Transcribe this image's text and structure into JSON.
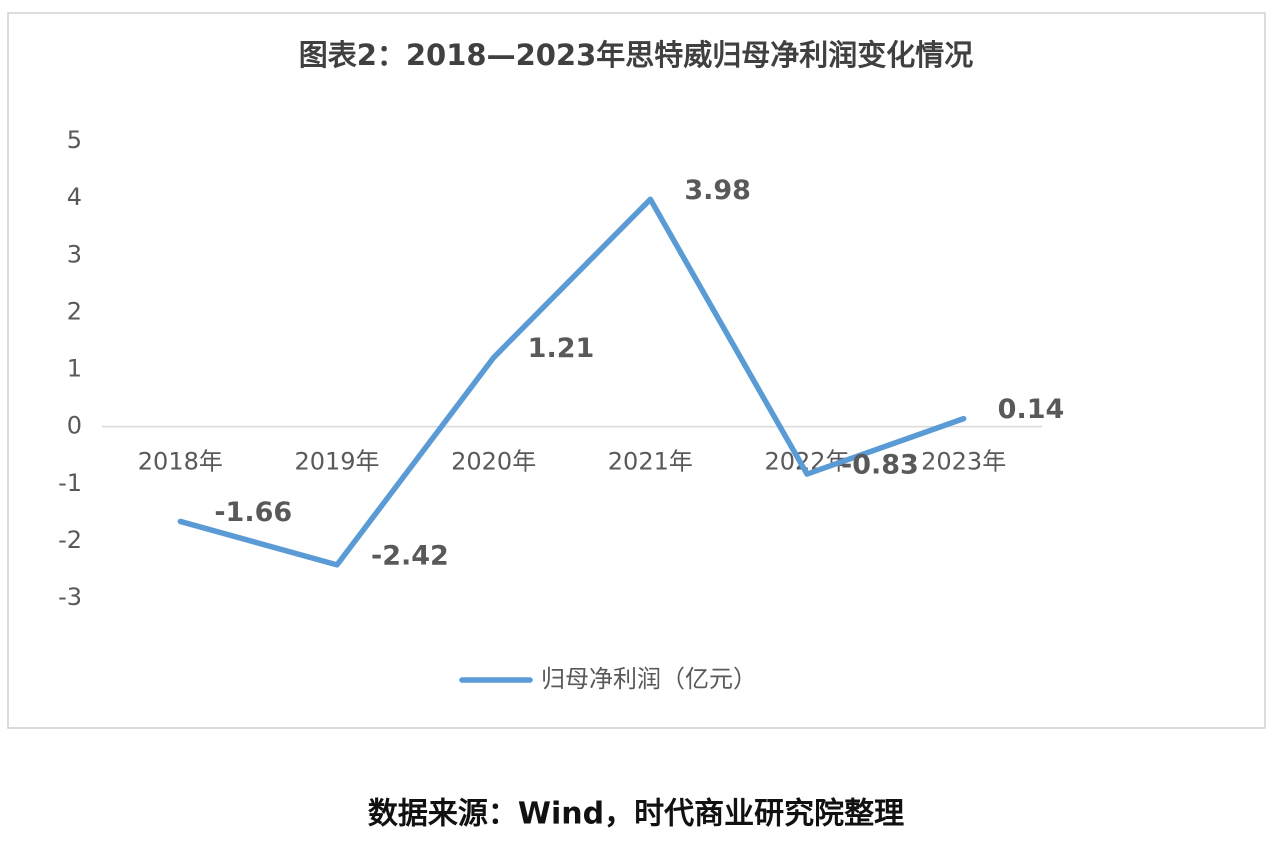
{
  "chart_data": {
    "type": "line",
    "title": "图表2：2018—2023年思特威归母净利润变化情况",
    "categories": [
      "2018年",
      "2019年",
      "2020年",
      "2021年",
      "2022年",
      "2023年"
    ],
    "series": [
      {
        "name": "归母净利润（亿元）",
        "color": "#5b9bd5",
        "values": [
          -1.66,
          -2.42,
          1.21,
          3.98,
          -0.83,
          0.14
        ]
      }
    ],
    "label_color": "#e8191d",
    "ylim": [
      -3,
      5
    ],
    "yticks": [
      -3,
      -2,
      -1,
      0,
      1,
      2,
      3,
      4,
      5
    ],
    "grid": false,
    "legend": "bottom",
    "source": "数据来源：Wind，时代商业研究院整理"
  }
}
